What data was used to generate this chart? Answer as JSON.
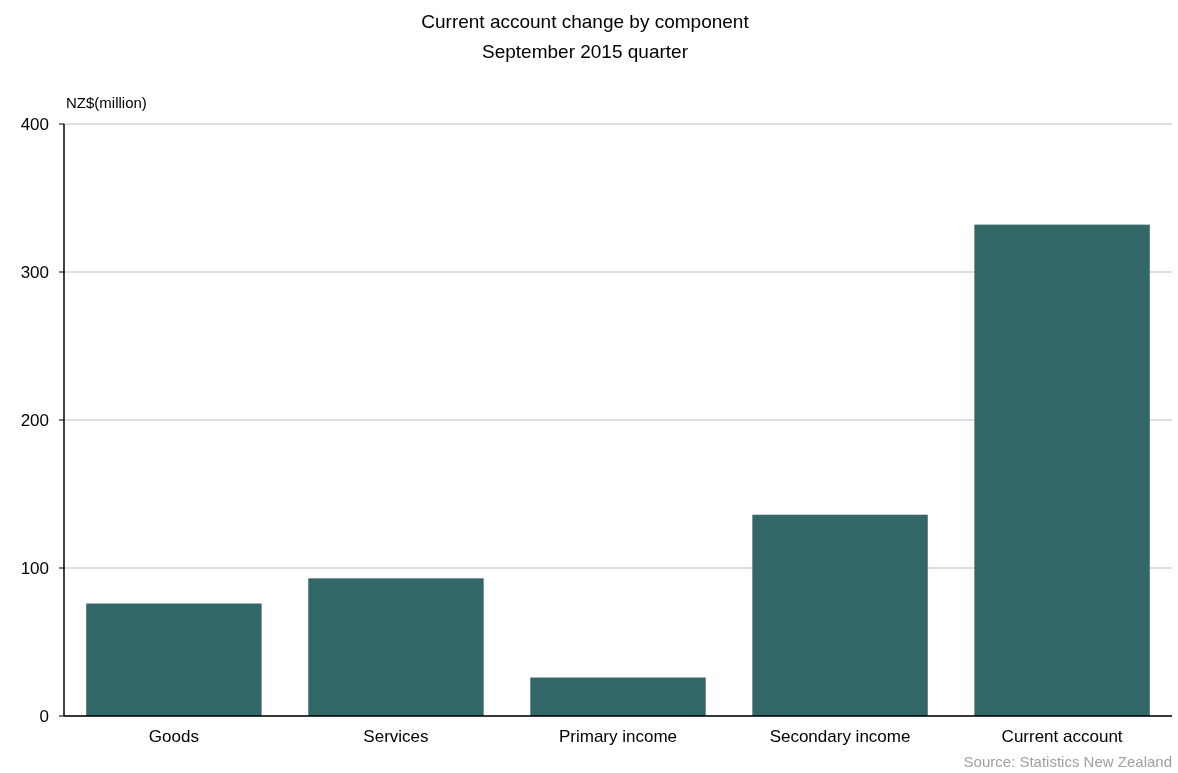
{
  "chart_data": {
    "type": "bar",
    "title": "Current account change by component",
    "subtitle": "September 2015 quarter",
    "ylabel": "NZ$(million)",
    "categories": [
      "Goods",
      "Services",
      "Primary income",
      "Secondary income",
      "Current account"
    ],
    "values": [
      76,
      93,
      26,
      136,
      332
    ],
    "color": "#336666",
    "ylim": [
      0,
      400
    ],
    "yticks": [
      0,
      100,
      200,
      300,
      400
    ],
    "grid": "y",
    "annotations": [
      "Source: Statistics New Zealand"
    ]
  }
}
